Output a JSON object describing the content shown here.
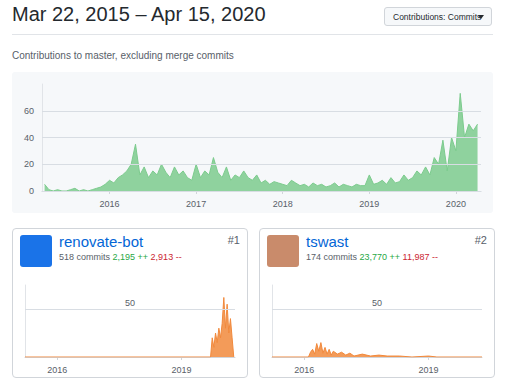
{
  "page": {
    "title": "Mar 22, 2015 – Apr 15, 2020",
    "button": "Contributions: Commits",
    "subtitle": "Contributions to master, excluding merge commits",
    "cards": [
      {
        "name": "renovate-bot",
        "rank": "#1",
        "commits": "518 commits",
        "additions": "2,195 ++",
        "deletions": "2,913 --"
      },
      {
        "name": "tswast",
        "rank": "#2",
        "commits": "174 commits",
        "additions": "23,770 ++",
        "deletions": "11,987 --"
      }
    ]
  },
  "chart_data": [
    {
      "type": "area",
      "color": "#7ccb8d",
      "grid": true,
      "xlim": [
        2015.22,
        2020.29
      ],
      "xticks": [
        2016,
        2017,
        2018,
        2019,
        2020
      ],
      "ylim": [
        0,
        80
      ],
      "yticks": [
        0,
        20,
        40,
        60
      ],
      "x": [
        2015.25,
        2015.3,
        2015.35,
        2015.4,
        2015.45,
        2015.5,
        2015.55,
        2015.6,
        2015.65,
        2015.7,
        2015.75,
        2015.8,
        2015.85,
        2015.9,
        2015.95,
        2016,
        2016.05,
        2016.1,
        2016.15,
        2016.2,
        2016.25,
        2016.3,
        2016.35,
        2016.4,
        2016.45,
        2016.5,
        2016.55,
        2016.6,
        2016.65,
        2016.7,
        2016.75,
        2016.8,
        2016.85,
        2016.9,
        2016.95,
        2017,
        2017.05,
        2017.1,
        2017.15,
        2017.2,
        2017.25,
        2017.3,
        2017.35,
        2017.4,
        2017.45,
        2017.5,
        2017.55,
        2017.6,
        2017.65,
        2017.7,
        2017.75,
        2017.8,
        2017.85,
        2017.9,
        2017.95,
        2018,
        2018.05,
        2018.1,
        2018.15,
        2018.2,
        2018.25,
        2018.3,
        2018.35,
        2018.4,
        2018.45,
        2018.5,
        2018.55,
        2018.6,
        2018.65,
        2018.7,
        2018.75,
        2018.8,
        2018.85,
        2018.9,
        2018.95,
        2019,
        2019.05,
        2019.1,
        2019.15,
        2019.2,
        2019.25,
        2019.3,
        2019.35,
        2019.4,
        2019.45,
        2019.5,
        2019.55,
        2019.6,
        2019.65,
        2019.7,
        2019.75,
        2019.8,
        2019.85,
        2019.9,
        2019.95,
        2020,
        2020.05,
        2020.1,
        2020.15,
        2020.2,
        2020.25
      ],
      "values": [
        5,
        1,
        0,
        1,
        0,
        0,
        1,
        2,
        0,
        1,
        0,
        1,
        2,
        3,
        5,
        8,
        6,
        10,
        12,
        15,
        20,
        35,
        12,
        18,
        10,
        15,
        12,
        20,
        14,
        10,
        18,
        12,
        15,
        10,
        8,
        20,
        10,
        15,
        12,
        25,
        14,
        10,
        18,
        8,
        12,
        10,
        15,
        10,
        8,
        12,
        6,
        8,
        5,
        7,
        6,
        5,
        4,
        8,
        6,
        4,
        5,
        3,
        6,
        4,
        5,
        3,
        4,
        6,
        3,
        5,
        4,
        3,
        5,
        4,
        4,
        12,
        5,
        6,
        8,
        5,
        10,
        6,
        7,
        12,
        8,
        10,
        15,
        12,
        18,
        12,
        25,
        20,
        38,
        15,
        40,
        30,
        73,
        40,
        50,
        45,
        50
      ]
    },
    {
      "type": "area",
      "color": "#f1893c",
      "grid": true,
      "xlim": [
        2015.22,
        2020.29
      ],
      "xticks": [
        2016,
        2019
      ],
      "ylim": [
        0,
        75
      ],
      "yticks": [
        50
      ],
      "x": [
        2015.22,
        2019.7,
        2019.74,
        2019.78,
        2019.82,
        2019.86,
        2019.9,
        2019.94,
        2019.98,
        2020.02,
        2020.06,
        2020.1,
        2020.14,
        2020.18,
        2020.22,
        2020.26
      ],
      "values": [
        0,
        0,
        20,
        10,
        25,
        15,
        30,
        20,
        35,
        62,
        30,
        55,
        25,
        40,
        20,
        0
      ]
    },
    {
      "type": "area",
      "color": "#f1893c",
      "grid": true,
      "xlim": [
        2015.22,
        2020.29
      ],
      "xticks": [
        2016,
        2019
      ],
      "ylim": [
        0,
        75
      ],
      "yticks": [
        50
      ],
      "x": [
        2015.22,
        2016.1,
        2016.15,
        2016.2,
        2016.25,
        2016.3,
        2016.35,
        2016.4,
        2016.45,
        2016.5,
        2016.55,
        2016.6,
        2016.65,
        2016.7,
        2016.8,
        2016.9,
        2017,
        2017.1,
        2017.2,
        2017.4,
        2017.6,
        2017.8,
        2018,
        2018.3,
        2018.6,
        2019,
        2019.2,
        2020.29
      ],
      "values": [
        0,
        0,
        5,
        8,
        3,
        14,
        6,
        15,
        4,
        10,
        3,
        8,
        2,
        6,
        3,
        5,
        2,
        4,
        1,
        3,
        1,
        2,
        1,
        1,
        0,
        1,
        0,
        0
      ]
    }
  ]
}
